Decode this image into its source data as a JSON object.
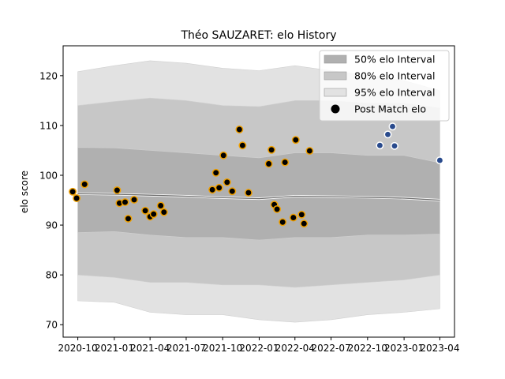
{
  "chart_data": {
    "type": "scatter",
    "title": "Théo SAUZARET: elo History",
    "xlabel": "",
    "ylabel": "elo score",
    "xlim": [
      "2020-08-25",
      "2023-05-08"
    ],
    "ylim": [
      67.5,
      126
    ],
    "x_ticks": [
      "2020-10",
      "2021-01",
      "2021-04",
      "2021-07",
      "2021-10",
      "2022-01",
      "2022-04",
      "2022-07",
      "2022-10",
      "2023-01",
      "2023-04"
    ],
    "y_ticks": [
      70,
      80,
      90,
      100,
      110,
      120
    ],
    "grid": false,
    "legend_position": "top-right",
    "legend": [
      {
        "label": "50% elo Interval",
        "color": "#b0b0b0"
      },
      {
        "label": "80% elo Interval",
        "color": "#c7c7c7"
      },
      {
        "label": "95% elo Interval",
        "color": "#e2e2e2"
      },
      {
        "label": "Post Match elo",
        "color": "#000000"
      }
    ],
    "bands": [
      {
        "name": "95% elo Interval",
        "color": "#e2e2e2",
        "x": [
          "2020-10-01",
          "2021-01-01",
          "2021-04-01",
          "2021-07-01",
          "2021-10-01",
          "2022-01-01",
          "2022-04-01",
          "2022-07-01",
          "2022-10-01",
          "2023-01-01",
          "2023-04-01"
        ],
        "upper": [
          120.8,
          122.0,
          123.0,
          122.5,
          121.5,
          121.0,
          122.0,
          121.0,
          120.0,
          119.0,
          117.0
        ],
        "lower": [
          74.8,
          74.5,
          72.5,
          72.0,
          72.0,
          71.0,
          70.5,
          71.0,
          72.0,
          72.5,
          73.2
        ]
      },
      {
        "name": "80% elo Interval",
        "color": "#c7c7c7",
        "x": [
          "2020-10-01",
          "2021-01-01",
          "2021-04-01",
          "2021-07-01",
          "2021-10-01",
          "2022-01-01",
          "2022-04-01",
          "2022-07-01",
          "2022-10-01",
          "2023-01-01",
          "2023-04-01"
        ],
        "upper": [
          114.0,
          114.8,
          115.5,
          115.0,
          114.0,
          113.8,
          115.0,
          115.0,
          114.5,
          114.5,
          113.5
        ],
        "lower": [
          80.0,
          79.5,
          78.5,
          78.5,
          78.0,
          78.0,
          77.5,
          78.0,
          78.5,
          79.0,
          80.0
        ]
      },
      {
        "name": "50% elo Interval",
        "color": "#b0b0b0",
        "x": [
          "2020-10-01",
          "2021-01-01",
          "2021-04-01",
          "2021-07-01",
          "2021-10-01",
          "2022-01-01",
          "2022-04-01",
          "2022-07-01",
          "2022-10-01",
          "2023-01-01",
          "2023-04-01"
        ],
        "upper": [
          105.6,
          105.5,
          105.0,
          104.5,
          104.0,
          103.5,
          104.5,
          104.5,
          104.0,
          104.0,
          102.5
        ],
        "lower": [
          88.5,
          88.7,
          88.0,
          87.5,
          87.5,
          87.0,
          87.5,
          87.5,
          88.0,
          88.0,
          88.2
        ]
      }
    ],
    "mean_line": {
      "x": [
        "2020-10-01",
        "2021-01-01",
        "2021-04-01",
        "2021-07-01",
        "2021-10-01",
        "2022-01-01",
        "2022-04-01",
        "2022-07-01",
        "2022-10-01",
        "2023-01-01",
        "2023-04-01"
      ],
      "y": [
        96.3,
        96.2,
        96.0,
        95.8,
        95.5,
        95.3,
        95.8,
        95.7,
        95.6,
        95.4,
        95.0
      ]
    },
    "series": [
      {
        "name": "Post Match elo",
        "style": "orange-edge",
        "fill": "#000000",
        "edge": "#f0a000",
        "points": [
          {
            "x": "2020-09-18",
            "y": 96.7
          },
          {
            "x": "2020-09-28",
            "y": 95.4
          },
          {
            "x": "2020-10-18",
            "y": 98.2
          },
          {
            "x": "2021-01-08",
            "y": 97.0
          },
          {
            "x": "2021-01-14",
            "y": 94.4
          },
          {
            "x": "2021-01-28",
            "y": 94.6
          },
          {
            "x": "2021-02-05",
            "y": 91.3
          },
          {
            "x": "2021-02-20",
            "y": 95.1
          },
          {
            "x": "2021-03-20",
            "y": 92.9
          },
          {
            "x": "2021-04-01",
            "y": 91.7
          },
          {
            "x": "2021-04-10",
            "y": 92.2
          },
          {
            "x": "2021-04-28",
            "y": 93.9
          },
          {
            "x": "2021-05-06",
            "y": 92.6
          },
          {
            "x": "2021-09-05",
            "y": 97.1
          },
          {
            "x": "2021-09-14",
            "y": 100.5
          },
          {
            "x": "2021-09-22",
            "y": 97.5
          },
          {
            "x": "2021-10-03",
            "y": 104.0
          },
          {
            "x": "2021-10-12",
            "y": 98.6
          },
          {
            "x": "2021-10-25",
            "y": 96.8
          },
          {
            "x": "2021-11-12",
            "y": 109.2
          },
          {
            "x": "2021-11-20",
            "y": 106.0
          },
          {
            "x": "2021-12-05",
            "y": 96.5
          },
          {
            "x": "2022-01-25",
            "y": 102.3
          },
          {
            "x": "2022-02-01",
            "y": 105.1
          },
          {
            "x": "2022-02-08",
            "y": 94.1
          },
          {
            "x": "2022-02-15",
            "y": 93.2
          },
          {
            "x": "2022-03-01",
            "y": 90.6
          },
          {
            "x": "2022-03-07",
            "y": 102.6
          },
          {
            "x": "2022-03-28",
            "y": 91.5
          },
          {
            "x": "2022-04-03",
            "y": 107.1
          },
          {
            "x": "2022-04-18",
            "y": 92.1
          },
          {
            "x": "2022-04-24",
            "y": 90.3
          },
          {
            "x": "2022-05-08",
            "y": 104.9
          }
        ]
      },
      {
        "name": "",
        "style": "blue",
        "fill": "#2a4b8d",
        "edge": "#ffffff",
        "points": [
          {
            "x": "2022-11-01",
            "y": 106.0
          },
          {
            "x": "2022-11-21",
            "y": 108.2
          },
          {
            "x": "2022-12-03",
            "y": 109.8
          },
          {
            "x": "2022-12-08",
            "y": 105.9
          },
          {
            "x": "2023-04-01",
            "y": 103.0
          }
        ]
      }
    ]
  }
}
